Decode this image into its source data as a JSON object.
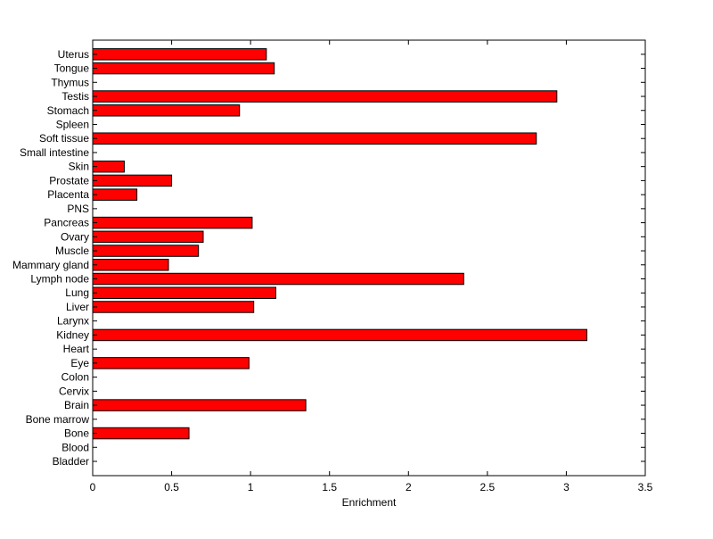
{
  "chart_data": {
    "type": "bar",
    "orientation": "horizontal",
    "title": "",
    "xlabel": "Enrichment",
    "ylabel": "",
    "xlim": [
      0,
      3.5
    ],
    "xticks": [
      0,
      0.5,
      1,
      1.5,
      2,
      2.5,
      3,
      3.5
    ],
    "xtick_labels": [
      "0",
      "0.5",
      "1",
      "1.5",
      "2",
      "2.5",
      "3",
      "3.5"
    ],
    "grid": false,
    "legend": "none",
    "bar_color": "#ff0000",
    "bar_edge_color": "#000000",
    "categories": [
      "Bladder",
      "Blood",
      "Bone",
      "Bone marrow",
      "Brain",
      "Cervix",
      "Colon",
      "Eye",
      "Heart",
      "Kidney",
      "Larynx",
      "Liver",
      "Lung",
      "Lymph node",
      "Mammary gland",
      "Muscle",
      "Ovary",
      "Pancreas",
      "PNS",
      "Placenta",
      "Prostate",
      "Skin",
      "Small intestine",
      "Soft tissue",
      "Spleen",
      "Stomach",
      "Testis",
      "Thymus",
      "Tongue",
      "Uterus"
    ],
    "values": [
      0,
      0,
      0.61,
      0,
      1.35,
      0,
      0,
      0.99,
      0,
      3.13,
      0,
      1.02,
      1.16,
      2.35,
      0.48,
      0.67,
      0.7,
      1.01,
      0,
      0.28,
      0.5,
      0.2,
      0,
      2.81,
      0,
      0.93,
      2.94,
      0,
      1.15,
      1.1
    ]
  }
}
